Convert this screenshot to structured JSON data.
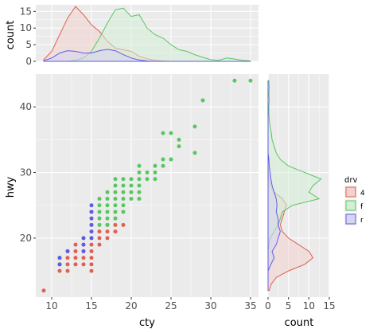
{
  "chart_data": [
    {
      "type": "scatter",
      "panel": "main",
      "xlabel": "cty",
      "ylabel": "hwy",
      "xlim": [
        8,
        36
      ],
      "ylim": [
        11,
        45
      ],
      "xticks": [
        10,
        15,
        20,
        25,
        30,
        35
      ],
      "yticks": [
        20,
        30,
        40
      ],
      "grid": true,
      "series": [
        {
          "name": "4",
          "color": "#e0604f",
          "points": [
            [
              9,
              12
            ],
            [
              11,
              15
            ],
            [
              11,
              16
            ],
            [
              11,
              17
            ],
            [
              12,
              15
            ],
            [
              12,
              16
            ],
            [
              12,
              17
            ],
            [
              12,
              18
            ],
            [
              13,
              16
            ],
            [
              13,
              17
            ],
            [
              13,
              18
            ],
            [
              13,
              19
            ],
            [
              14,
              16
            ],
            [
              14,
              17
            ],
            [
              14,
              18
            ],
            [
              14,
              19
            ],
            [
              14,
              20
            ],
            [
              15,
              15
            ],
            [
              15,
              16
            ],
            [
              15,
              17
            ],
            [
              15,
              18
            ],
            [
              15,
              19
            ],
            [
              15,
              20
            ],
            [
              15,
              21
            ],
            [
              15,
              22
            ],
            [
              16,
              19
            ],
            [
              16,
              20
            ],
            [
              16,
              21
            ],
            [
              17,
              20
            ],
            [
              17,
              21
            ],
            [
              17,
              22
            ],
            [
              18,
              21
            ],
            [
              18,
              22
            ],
            [
              19,
              22
            ]
          ]
        },
        {
          "name": "f",
          "color": "#58c760",
          "points": [
            [
              15,
              24
            ],
            [
              16,
              22
            ],
            [
              16,
              23
            ],
            [
              16,
              24
            ],
            [
              16,
              25
            ],
            [
              16,
              26
            ],
            [
              17,
              22
            ],
            [
              17,
              23
            ],
            [
              17,
              24
            ],
            [
              17,
              25
            ],
            [
              17,
              26
            ],
            [
              17,
              27
            ],
            [
              18,
              23
            ],
            [
              18,
              24
            ],
            [
              18,
              25
            ],
            [
              18,
              26
            ],
            [
              18,
              27
            ],
            [
              18,
              28
            ],
            [
              18,
              29
            ],
            [
              19,
              24
            ],
            [
              19,
              25
            ],
            [
              19,
              26
            ],
            [
              19,
              27
            ],
            [
              19,
              28
            ],
            [
              19,
              29
            ],
            [
              20,
              26
            ],
            [
              20,
              27
            ],
            [
              20,
              28
            ],
            [
              20,
              29
            ],
            [
              21,
              26
            ],
            [
              21,
              27
            ],
            [
              21,
              28
            ],
            [
              21,
              29
            ],
            [
              21,
              30
            ],
            [
              21,
              31
            ],
            [
              22,
              29
            ],
            [
              22,
              30
            ],
            [
              23,
              29
            ],
            [
              23,
              30
            ],
            [
              23,
              31
            ],
            [
              24,
              31
            ],
            [
              24,
              32
            ],
            [
              24,
              36
            ],
            [
              25,
              32
            ],
            [
              25,
              36
            ],
            [
              26,
              34
            ],
            [
              26,
              35
            ],
            [
              28,
              33
            ],
            [
              28,
              37
            ],
            [
              29,
              41
            ],
            [
              33,
              44
            ],
            [
              35,
              44
            ]
          ]
        },
        {
          "name": "r",
          "color": "#5c5ce6",
          "points": [
            [
              11,
              16
            ],
            [
              11,
              17
            ],
            [
              12,
              18
            ],
            [
              14,
              18
            ],
            [
              14,
              19
            ],
            [
              14,
              20
            ],
            [
              15,
              20
            ],
            [
              15,
              21
            ],
            [
              15,
              22
            ],
            [
              15,
              23
            ],
            [
              15,
              24
            ],
            [
              15,
              25
            ]
          ]
        }
      ]
    },
    {
      "type": "area",
      "panel": "top",
      "description_axis": "density of cty by drv",
      "ylabel": "count",
      "ylim": [
        0,
        17
      ],
      "yticks": [
        0,
        5,
        10,
        15
      ],
      "x": [
        9,
        10,
        11,
        12,
        13,
        14,
        15,
        16,
        17,
        18,
        19,
        20,
        21,
        22,
        23,
        24,
        25,
        26,
        27,
        28,
        29,
        30,
        31,
        32,
        33,
        34,
        35
      ],
      "series": [
        {
          "name": "4",
          "color": "#e0604f",
          "values": [
            0.5,
            3,
            8,
            13,
            16.5,
            14,
            11,
            9,
            6,
            4,
            3.5,
            3,
            1.5,
            0.8,
            0.3,
            0.1,
            0,
            0,
            0,
            0,
            0,
            0,
            0,
            0,
            0,
            0,
            0
          ]
        },
        {
          "name": "f",
          "color": "#58c760",
          "values": [
            0,
            0,
            0,
            0,
            0.3,
            1,
            3,
            7,
            11.5,
            15.5,
            16,
            13.5,
            14,
            10,
            8,
            7,
            5,
            3.5,
            3,
            2,
            1.2,
            0.5,
            0.3,
            1,
            0.7,
            0.3,
            0.1
          ]
        },
        {
          "name": "r",
          "color": "#5c5ce6",
          "values": [
            0.2,
            1,
            2.5,
            3.2,
            3,
            2.5,
            2.5,
            3.2,
            3.6,
            3.2,
            2,
            1,
            0.4,
            0.1,
            0,
            0,
            0,
            0,
            0,
            0,
            0,
            0,
            0,
            0,
            0,
            0,
            0
          ]
        }
      ]
    },
    {
      "type": "area",
      "panel": "right",
      "description_axis": "density of hwy by drv",
      "xlabel": "count",
      "xlim": [
        0,
        15
      ],
      "xticks": [
        0,
        5,
        10,
        15
      ],
      "y": [
        12,
        13,
        14,
        15,
        16,
        17,
        18,
        19,
        20,
        21,
        22,
        23,
        24,
        25,
        26,
        27,
        28,
        29,
        30,
        31,
        32,
        33,
        34,
        35,
        36,
        37,
        38,
        39,
        40,
        41,
        42,
        43,
        44
      ],
      "series": [
        {
          "name": "4",
          "color": "#e0604f",
          "values": [
            0.3,
            0.8,
            2,
            5,
            9,
            11,
            10,
            7.5,
            5,
            3.5,
            3,
            3.5,
            4,
            4.5,
            3.5,
            1.5,
            0.5,
            0.2,
            0.1,
            0,
            0,
            0,
            0,
            0,
            0,
            0,
            0,
            0,
            0,
            0,
            0,
            0,
            0
          ]
        },
        {
          "name": "f",
          "color": "#58c760",
          "values": [
            0,
            0,
            0,
            0,
            0,
            0,
            0,
            0.2,
            0.5,
            1.5,
            2.5,
            3,
            3.5,
            6,
            12.5,
            10,
            11,
            13,
            9,
            5,
            3,
            2,
            1.5,
            1,
            0.8,
            0.5,
            0.3,
            0.2,
            0.2,
            0.3,
            0.2,
            0.3,
            0.2
          ]
        },
        {
          "name": "r",
          "color": "#5c5ce6",
          "values": [
            0,
            0,
            0,
            0,
            0.7,
            1.5,
            1,
            2,
            2.5,
            3,
            2.5,
            2.5,
            2,
            2.2,
            2,
            1.5,
            1,
            0.7,
            0.5,
            0.3,
            0.2,
            0,
            0,
            0,
            0,
            0,
            0,
            0,
            0,
            0,
            0,
            0,
            0
          ]
        }
      ]
    }
  ],
  "legend": {
    "title": "drv",
    "placement": "right",
    "items": [
      {
        "label": "4",
        "line": "#e0604f",
        "fill": "#f2d2ce"
      },
      {
        "label": "f",
        "line": "#58c760",
        "fill": "#d4eed6"
      },
      {
        "label": "r",
        "line": "#5c5ce6",
        "fill": "#d6d6f2"
      }
    ]
  }
}
